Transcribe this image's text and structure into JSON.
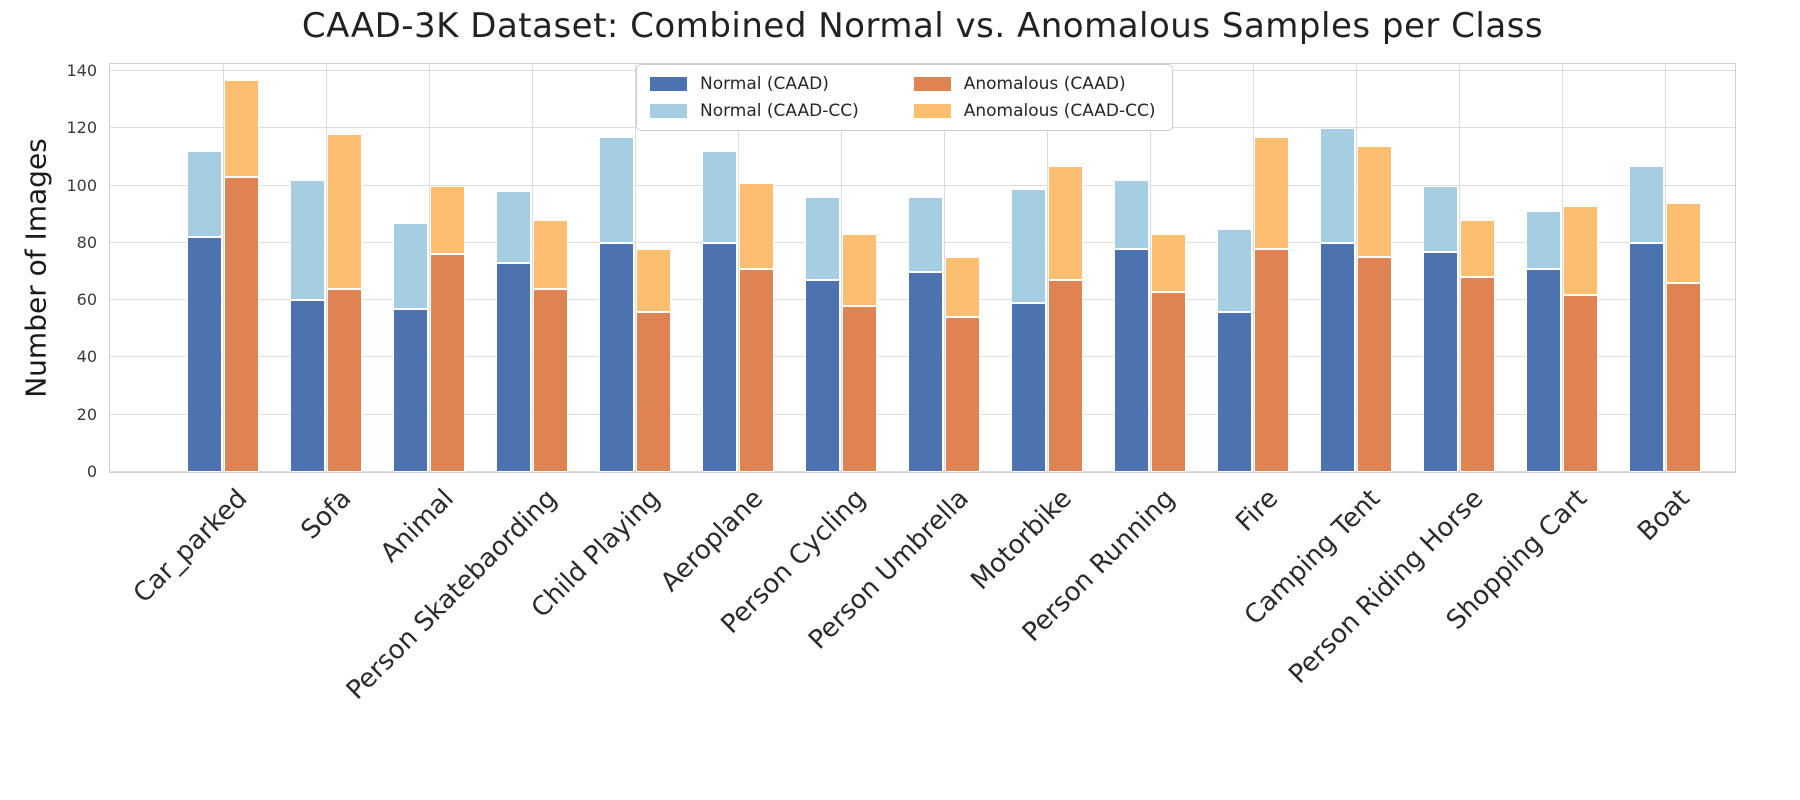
{
  "title": "CAAD-3K Dataset: Combined Normal vs. Anomalous Samples per Class",
  "ylabel": "Number of Images",
  "chart_data": {
    "type": "bar",
    "stacked": true,
    "grid": true,
    "legend_position": "upper center",
    "title": "CAAD-3K Dataset: Combined Normal vs. Anomalous Samples per Class",
    "xlabel": "",
    "ylabel": "Number of Images",
    "ylim": [
      0,
      143.2
    ],
    "yticks": [
      0,
      20,
      40,
      60,
      80,
      100,
      120,
      140
    ],
    "categories": [
      "Car_parked",
      "Sofa",
      "Animal",
      "Person Skatebaording",
      "Child Playing",
      "Aeroplane",
      "Person Cycling",
      "Person Umbrella",
      "Motorbike",
      "Person Running",
      "Fire",
      "Camping Tent",
      "Person Riding Horse",
      "Shopping Cart",
      "Boat"
    ],
    "series": [
      {
        "name": "Normal (CAAD)",
        "color": "#4c72b0",
        "values": [
          82,
          60,
          57,
          73,
          80,
          80,
          67,
          70,
          59,
          78,
          56,
          80,
          77,
          71,
          80
        ]
      },
      {
        "name": "Normal (CAAD-CC)",
        "color": "#a6cee3",
        "values": [
          30,
          42,
          30,
          25,
          37,
          32,
          29,
          26,
          40,
          24,
          29,
          40,
          23,
          20,
          27
        ]
      },
      {
        "name": "Anomalous (CAAD)",
        "color": "#dd8452",
        "values": [
          103,
          64,
          76,
          64,
          56,
          71,
          58,
          54,
          67,
          63,
          78,
          75,
          68,
          62,
          66
        ]
      },
      {
        "name": "Anomalous (CAAD-CC)",
        "color": "#fdbf6f",
        "values": [
          34,
          54,
          24,
          24,
          22,
          30,
          25,
          21,
          40,
          20,
          39,
          39,
          20,
          31,
          28
        ]
      }
    ],
    "stacks": [
      {
        "label": "normal",
        "series_indexes": [
          0,
          1
        ],
        "stacked_totals": [
          112,
          102,
          87,
          98,
          117,
          112,
          96,
          96,
          99,
          102,
          85,
          120,
          100,
          91,
          107
        ]
      },
      {
        "label": "anomalous",
        "series_indexes": [
          2,
          3
        ],
        "stacked_totals": [
          137,
          118,
          100,
          88,
          78,
          101,
          83,
          75,
          107,
          83,
          117,
          114,
          88,
          93,
          94
        ]
      }
    ]
  }
}
